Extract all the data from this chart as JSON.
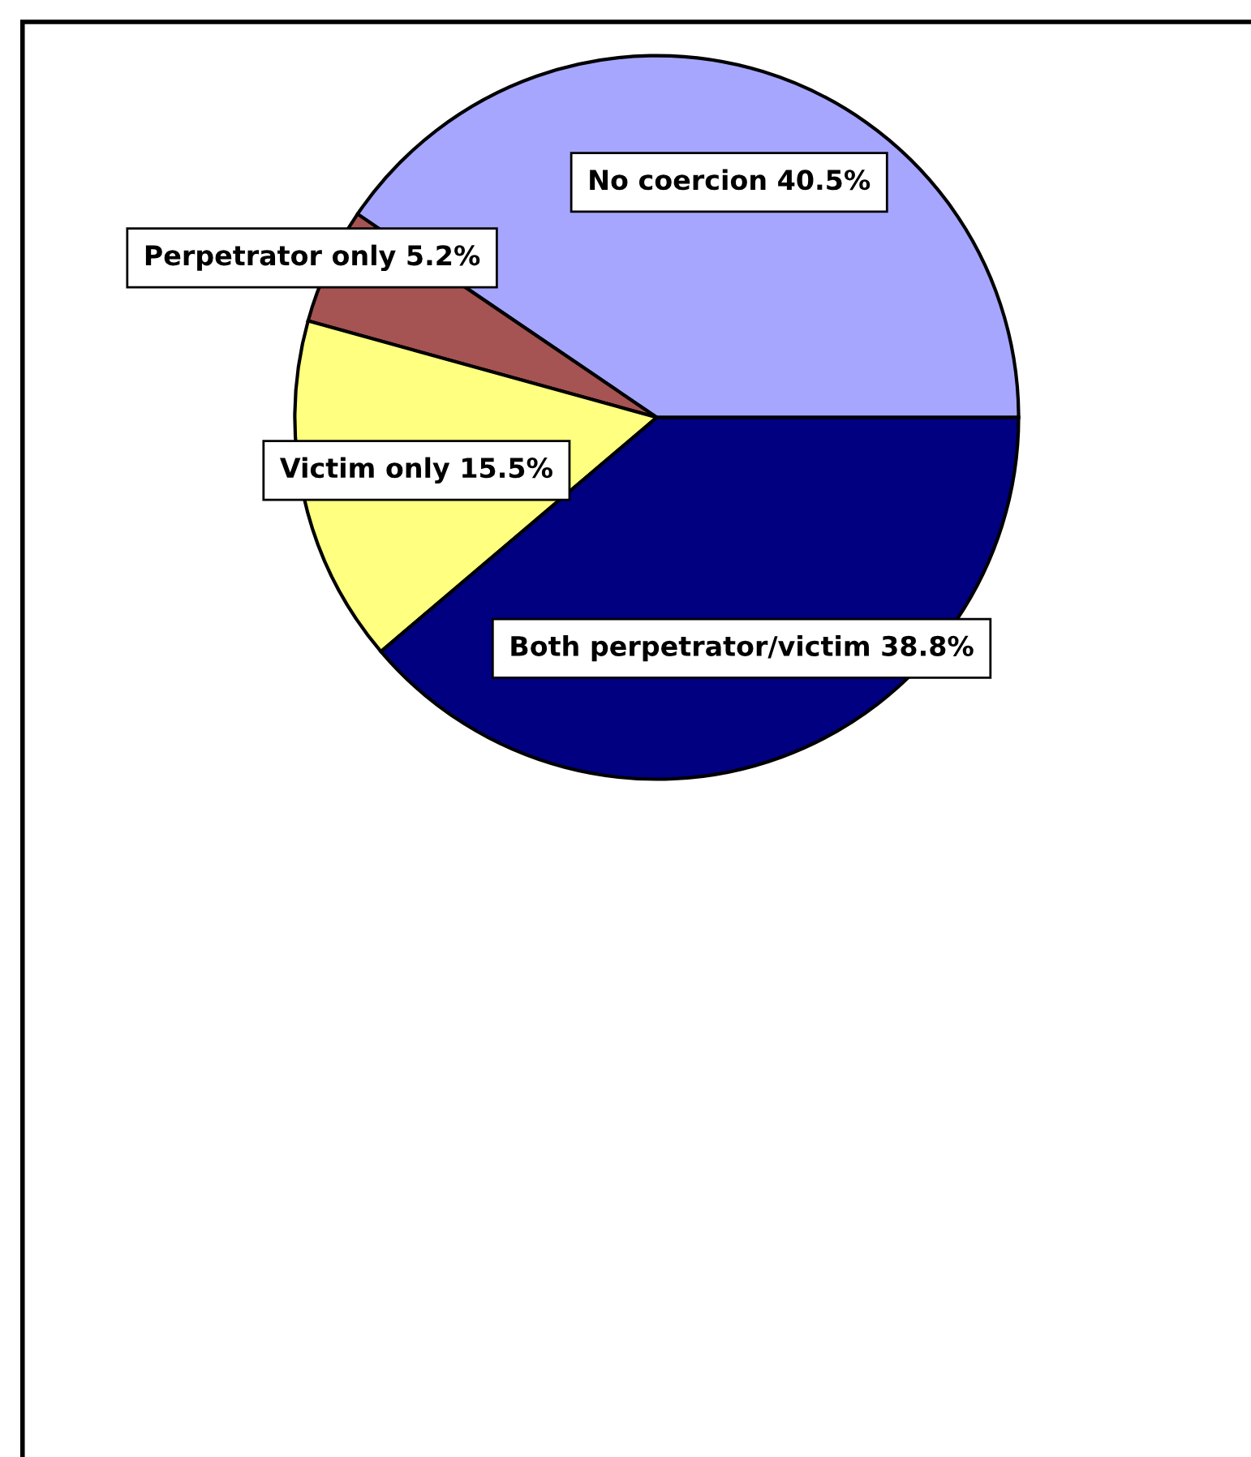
{
  "chart_data": {
    "type": "pie",
    "categories": [
      "No coercion",
      "Perpetrator only",
      "Victim only",
      "Both perpetrator/victim"
    ],
    "values": [
      40.5,
      5.2,
      15.5,
      38.8
    ],
    "value_labels": [
      "40.5%",
      "5.2%",
      "15.5%",
      "38.8%"
    ],
    "colors": [
      "#a6a6ff",
      "#a65353",
      "#ffff80",
      "#000080"
    ],
    "legend": false
  }
}
